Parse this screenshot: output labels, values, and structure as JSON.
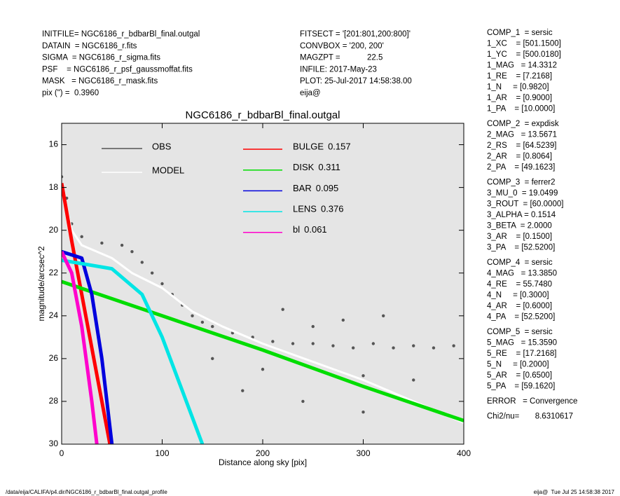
{
  "header": {
    "left": [
      "INITFILE= NGC6186_r_bdbarBl_final.outgal",
      "DATAIN  = NGC6186_r.fits",
      "SIGMA  = NGC6186_r_sigma.fits",
      "PSF    = NGC6186_r_psf_gaussmoffat.fits",
      "MASK   = NGC6186_r_mask.fits",
      "pix (\") =  0.3960"
    ],
    "middle": [
      "FITSECT = '[201:801,200:800]'",
      "CONVBOX = '200, 200'",
      "MAGZPT =            22.5",
      "INFILE: 2017-May-23",
      "PLOT: 25-Jul-2017 14:58:38.00",
      "eija@"
    ]
  },
  "parameters": [
    [
      "COMP_1  = sersic",
      "1_XC    = [501.1500]",
      "1_YC    = [500.0180]",
      "1_MAG   = 14.3312",
      "1_RE    = [7.2168]",
      "1_N     = [0.9820]",
      "1_AR    = [0.9000]",
      "1_PA    = [10.0000]"
    ],
    [
      "COMP_2  = expdisk",
      "2_MAG   = 13.5671",
      "2_RS    = [64.5239]",
      "2_AR    = [0.8064]",
      "2_PA    = [49.1623]"
    ],
    [
      "COMP_3  = ferrer2",
      "3_MU_0  = 19.0499",
      "3_ROUT  = [60.0000]",
      "3_ALPHA = 0.1514",
      "3_BETA  = 2.0000",
      "3_AR    = [0.1500]",
      "3_PA    = [52.5200]"
    ],
    [
      "COMP_4  = sersic",
      "4_MAG   = 13.3850",
      "4_RE    = 55.7480",
      "4_N     = [0.3000]",
      "4_AR    = [0.6000]",
      "4_PA    = [52.5200]"
    ],
    [
      "COMP_5  = sersic",
      "5_MAG   = 15.3590",
      "5_RE    = [17.2168]",
      "5_N     = [0.2000]",
      "5_AR    = [0.6500]",
      "5_PA    = [59.1620]"
    ],
    [
      "ERROR   = Convergence"
    ],
    [
      "Chi2/nu=       8.6310617"
    ]
  ],
  "footer": {
    "left": "/data/eija/CALIFA/p4.dir/NGC6186_r_bdbarBl_final.outgal_profile",
    "right": "eija@  Tue Jul 25 14:58:38 2017"
  },
  "chart_data": {
    "type": "line",
    "title": "NGC6186_r_bdbarBl_final.outgal",
    "xlabel": "Distance along sky [pix]",
    "ylabel": "magnitude/arcsec^2",
    "xlim": [
      0,
      400
    ],
    "ylim": [
      30,
      15
    ],
    "xticks": [
      0,
      100,
      200,
      300,
      400
    ],
    "yticks": [
      16,
      18,
      20,
      22,
      24,
      26,
      28,
      30
    ],
    "background": "#e5e5e5",
    "series": [
      {
        "name": "OBS",
        "color": "#555555",
        "mode": "markers",
        "x": [
          0,
          5,
          10,
          20,
          40,
          60,
          70,
          80,
          90,
          100,
          110,
          120,
          130,
          140,
          150,
          170,
          190,
          210,
          230,
          250,
          270,
          290,
          310,
          330,
          350,
          370,
          390,
          150,
          200,
          250,
          300,
          350,
          220,
          280,
          320,
          180,
          240,
          300
        ],
        "values": [
          17.5,
          18.5,
          19.7,
          20.3,
          20.6,
          20.7,
          21,
          21.5,
          22,
          22.5,
          23,
          23.5,
          24,
          24.3,
          24.5,
          24.8,
          25,
          25.2,
          25.3,
          25.3,
          25.4,
          25.5,
          25.3,
          25.5,
          25.4,
          25.5,
          25.4,
          26,
          26.5,
          24.5,
          26.8,
          27,
          23.7,
          24.2,
          24,
          27.5,
          28,
          28.5
        ]
      },
      {
        "name": "MODEL",
        "color": "#ffffff",
        "mode": "lines",
        "x": [
          0,
          10,
          20,
          50,
          70,
          100,
          130,
          160,
          200,
          300,
          400
        ],
        "values": [
          18,
          20,
          20.7,
          21.3,
          22,
          22.7,
          23.8,
          24.5,
          25.3,
          27,
          29
        ]
      },
      {
        "name": "BULGE",
        "fraction": 0.157,
        "color": "#ff0000",
        "mode": "lines",
        "x": [
          0,
          10,
          20,
          30,
          40,
          48
        ],
        "values": [
          17.8,
          20.5,
          23,
          25.5,
          28,
          30
        ]
      },
      {
        "name": "DISK",
        "fraction": 0.311,
        "color": "#00dd00",
        "mode": "lines",
        "x": [
          0,
          100,
          200,
          300,
          400
        ],
        "values": [
          22.4,
          24,
          25.6,
          27.3,
          28.9
        ]
      },
      {
        "name": "BAR",
        "fraction": 0.095,
        "color": "#0000dd",
        "mode": "lines",
        "x": [
          0,
          20,
          30,
          40,
          50
        ],
        "values": [
          21,
          21.3,
          23,
          26,
          30
        ]
      },
      {
        "name": "LENS",
        "fraction": 0.376,
        "color": "#00e5e5",
        "mode": "lines",
        "x": [
          0,
          50,
          80,
          100,
          120,
          140
        ],
        "values": [
          21.4,
          21.8,
          23,
          25,
          27.5,
          30
        ]
      },
      {
        "name": "bl",
        "fraction": 0.061,
        "color": "#ff00cc",
        "mode": "lines",
        "x": [
          0,
          10,
          20,
          30,
          35
        ],
        "values": [
          21,
          22,
          24.5,
          28,
          30
        ]
      }
    ]
  }
}
